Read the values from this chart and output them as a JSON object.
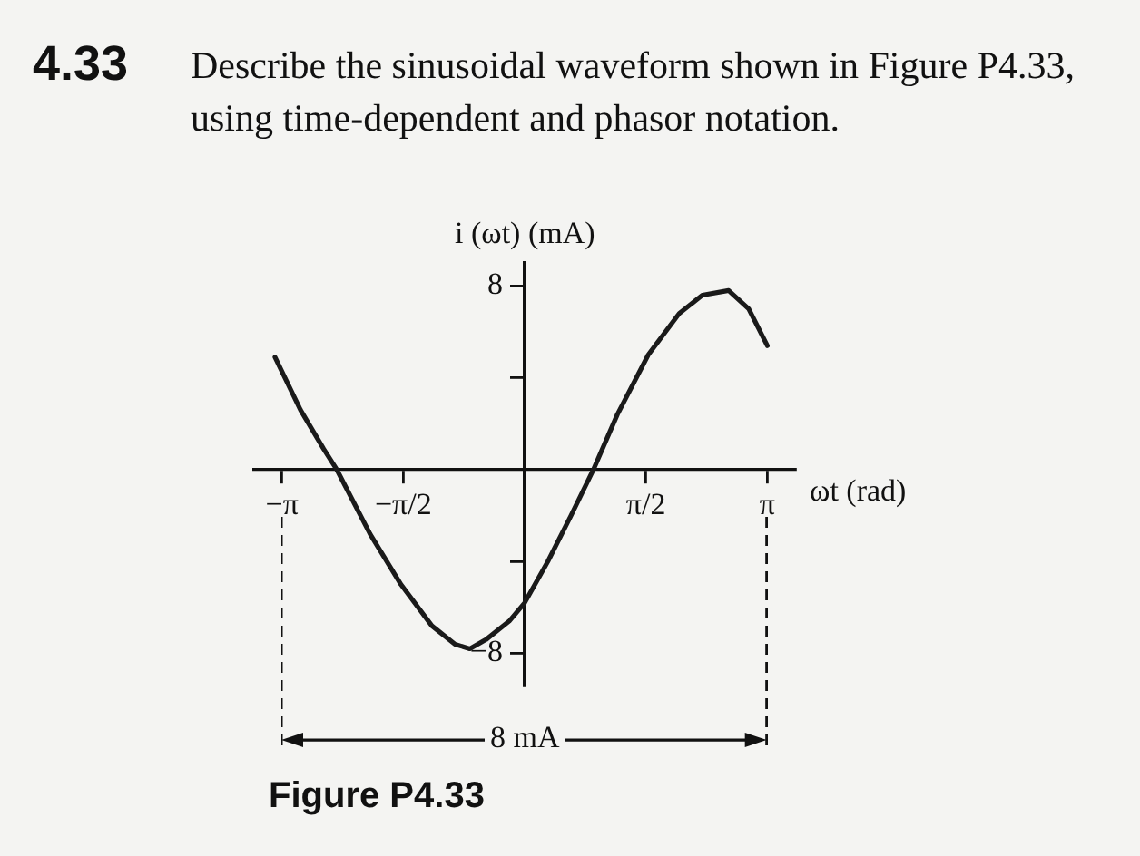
{
  "chart_data": {
    "type": "line",
    "title": "4.33",
    "subtitle": "Describe the sinusoidal waveform shown in Figure P4.33, using time-dependent and phasor notation.",
    "xlabel": "ωt (rad)",
    "ylabel": "i (ωt) (mA)",
    "x": [
      -3.23,
      -2.9,
      -2.6,
      -2.43,
      -2.0,
      -1.6,
      -1.2,
      -0.9,
      -0.71,
      -0.5,
      -0.2,
      0,
      0.3,
      0.6,
      0.89,
      1.2,
      1.6,
      2.0,
      2.3,
      2.64,
      2.9,
      3.14
    ],
    "series": [
      {
        "color": "#1a1a1a",
        "values": [
          4.9,
          2.6,
          0.9,
          0,
          -2.8,
          -5.0,
          -6.8,
          -7.6,
          -7.8,
          -7.4,
          -6.6,
          -5.8,
          -4.0,
          -2.0,
          0,
          2.4,
          5.0,
          6.8,
          7.6,
          7.8,
          7.0,
          5.4
        ]
      }
    ],
    "xlim": [
      -3.5,
      3.5
    ],
    "ylim": [
      -9.4,
      9
    ],
    "xticks": [
      {
        "value": -3.14,
        "label": "−π"
      },
      {
        "value": -1.57,
        "label": "−π/2"
      },
      {
        "value": 1.57,
        "label": "π/2"
      },
      {
        "value": 3.14,
        "label": "π"
      }
    ],
    "yticks": [
      {
        "value": -8,
        "label": "−8"
      },
      {
        "value": -4,
        "label": null
      },
      {
        "value": 4,
        "label": null
      },
      8
    ],
    "annotations": [
      "8 mA",
      "Figure P4.33"
    ],
    "grid": false,
    "legend": false,
    "marker": "none",
    "line_style": "solid"
  }
}
